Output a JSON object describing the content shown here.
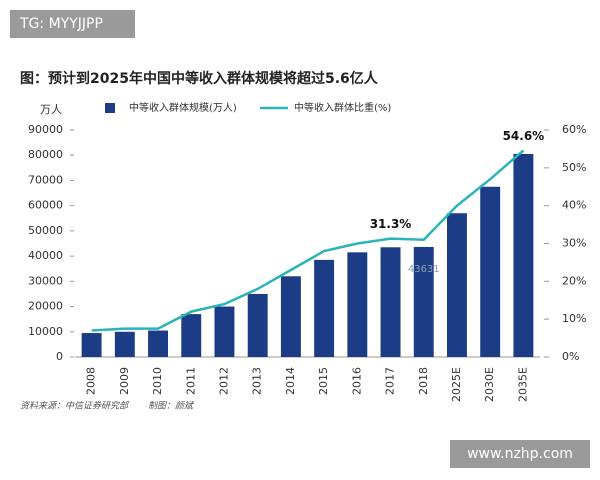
{
  "watermark_top": "TG: MYYJJPP",
  "watermark_bottom": "www.nzhp.com",
  "chart_data": {
    "type": "bar-line",
    "title": "图：预计到2025年中国中等收入群体规模将超过5.6亿人",
    "y_label": "万人",
    "source": "资料来源：中信证券研究部",
    "credit": "制图：颜斌",
    "categories": [
      "2008",
      "2009",
      "2010",
      "2011",
      "2012",
      "2013",
      "2014",
      "2015",
      "2016",
      "2017",
      "2018",
      "2025E",
      "2030E",
      "2035E"
    ],
    "series": [
      {
        "name": "中等收入群体规模(万人)",
        "color": "#1c3d86",
        "type": "bar",
        "values": [
          9500,
          10000,
          10500,
          17000,
          20000,
          25000,
          32000,
          38500,
          41500,
          43500,
          43631,
          57000,
          67500,
          80500
        ],
        "value_labels": [
          null,
          null,
          null,
          null,
          null,
          null,
          null,
          null,
          null,
          null,
          "43631",
          null,
          null,
          null
        ]
      },
      {
        "name": "中等收入群体比重(%)",
        "color": "#2bb3b8",
        "type": "line",
        "axis": "y2",
        "values": [
          7,
          7.5,
          7.5,
          12,
          14,
          18,
          23,
          28,
          30,
          31.3,
          31,
          40,
          47,
          54.6
        ],
        "value_labels": [
          null,
          null,
          null,
          null,
          null,
          null,
          null,
          null,
          null,
          "31.3%",
          null,
          null,
          null,
          "54.6%"
        ]
      }
    ],
    "ylim": [
      0,
      90000
    ],
    "yticks": [
      0,
      10000,
      20000,
      30000,
      40000,
      50000,
      60000,
      70000,
      80000,
      90000
    ],
    "y2lim": [
      0,
      60
    ],
    "y2ticks": [
      {
        "value": 0,
        "label": "0%"
      },
      {
        "value": 10,
        "label": "10%"
      },
      {
        "value": 20,
        "label": "20%"
      },
      {
        "value": 30,
        "label": "30%"
      },
      {
        "value": 40,
        "label": "40%"
      },
      {
        "value": 50,
        "label": "50%"
      },
      {
        "value": 60,
        "label": "60%"
      }
    ],
    "grid": false
  }
}
